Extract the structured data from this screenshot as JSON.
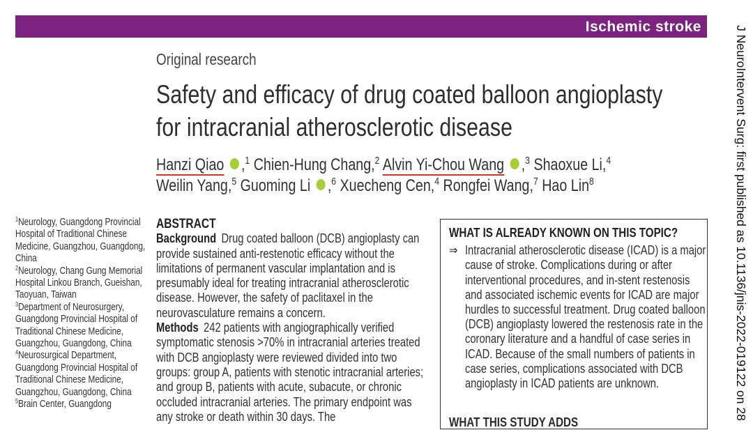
{
  "banner": {
    "label": "Ischemic stroke"
  },
  "article_type": "Original research",
  "title": "Safety and efficacy of drug coated balloon angioplasty for intracranial atherosclerotic disease",
  "authors": {
    "separator": ",",
    "list": [
      {
        "name": "Hanzi Qiao",
        "affil": 1,
        "orcid": true,
        "highlight": true
      },
      {
        "name": "Chien-Hung Chang",
        "affil": 2,
        "orcid": false,
        "highlight": false
      },
      {
        "name": "Alvin Yi-Chou Wang",
        "affil": 3,
        "orcid": true,
        "highlight": true
      },
      {
        "name": "Shaoxue Li",
        "affil": 4,
        "orcid": false,
        "highlight": false
      },
      {
        "name": "Weilin Yang",
        "affil": 5,
        "orcid": false,
        "highlight": false
      },
      {
        "name": "Guoming Li",
        "affil": 6,
        "orcid": true,
        "highlight": false
      },
      {
        "name": "Xuecheng Cen",
        "affil": 4,
        "orcid": false,
        "highlight": false
      },
      {
        "name": "Rongfei Wang",
        "affil": 7,
        "orcid": false,
        "highlight": false
      },
      {
        "name": "Hao Lin",
        "affil": 8,
        "orcid": false,
        "highlight": false
      }
    ]
  },
  "affiliations": [
    {
      "num": 1,
      "text": "Neurology, Guangdong Provincial Hospital of Traditional Chinese Medicine, Guangzhou, Guangdong, China"
    },
    {
      "num": 2,
      "text": "Neurology, Chang Gung Memorial Hospital Linkou Branch, Gueishan, Taoyuan, Taiwan"
    },
    {
      "num": 3,
      "text": "Department of Neurosurgery, Guangdong Provincial Hospital of Traditional Chinese Medicine, Guangzhou, Guangdong, China"
    },
    {
      "num": 4,
      "text": "Neurosurgical Department, Guangdong Provincial Hospital of Traditional Chinese Medicine, Guangzhou, Guangdong, China"
    },
    {
      "num": 5,
      "text": "Brain Center, Guangdong"
    }
  ],
  "abstract": {
    "heading": "ABSTRACT",
    "sections": [
      {
        "label": "Background",
        "text": "Drug coated balloon (DCB) angioplasty can provide sustained anti-restenotic efficacy without the limitations of permanent vascular implantation and is presumably ideal for treating intracranial atherosclerotic disease. However, the safety of paclitaxel in the neurovasculature remains a concern."
      },
      {
        "label": "Methods",
        "text": "242 patients with angiographically verified symptomatic stenosis >70% in intracranial arteries treated with DCB angioplasty were reviewed divided into two groups: group A, patients with stenotic intracranial arteries; and group B, patients with acute, subacute, or chronic occluded intracranial arteries. The primary endpoint was any stroke or death within 30 days. The"
      }
    ]
  },
  "known_box": {
    "heading": "WHAT IS ALREADY KNOWN ON THIS TOPIC?",
    "bullet": "⇒",
    "items": [
      "Intracranial atherosclerotic disease (ICAD) is a major cause of stroke. Complications during or after interventional procedures, and in-stent restenosis and associated ischemic events for ICAD are major hurdles to successful treatment. Drug coated balloon (DCB) angioplasty lowered the restenosis rate in the coronary literature and a handful of case series in ICAD. Because of the small numbers of patients in case series, complications associated with DCB angioplasty in ICAD patients are unknown."
    ]
  },
  "next_box_heading": "WHAT THIS STUDY ADDS",
  "side_note": "J NeuroIntervent Surg: first published as 10.1136/jnis-2022-019122 on 28"
}
